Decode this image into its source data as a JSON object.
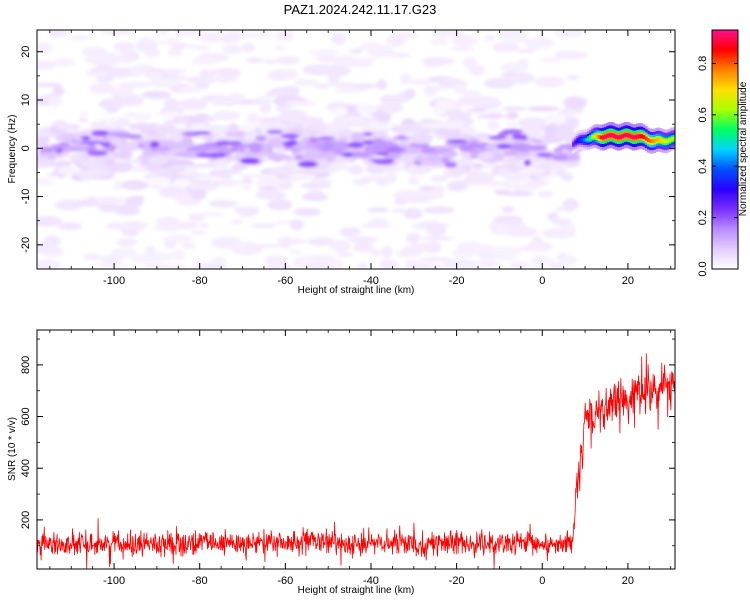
{
  "title": "PAZ1.2024.242.11.17.G23",
  "chart_data": [
    {
      "type": "heatmap",
      "xlabel": "Height of straight line (km)",
      "ylabel": "Frequency (Hz)",
      "xlim": [
        -118,
        31
      ],
      "ylim": [
        -25,
        24.5
      ],
      "xticks": [
        -100,
        -80,
        -60,
        -40,
        -20,
        0,
        20
      ],
      "yticks": [
        -20,
        -10,
        0,
        10,
        20
      ],
      "colorbar": {
        "label": "Normalized spectral amplitude",
        "range": [
          0,
          0.93
        ],
        "ticks": [
          0.0,
          0.2,
          0.4,
          0.6,
          0.8
        ],
        "tick_labels": [
          "0.0",
          "0.2",
          "0.4",
          "0.6",
          "0.8"
        ],
        "colormap": [
          "#ffffff",
          "#e4ccff",
          "#b98cff",
          "#7a2dff",
          "#2a00ff",
          "#0050ff",
          "#00d4ff",
          "#00ff60",
          "#aaff00",
          "#ffe000",
          "#ff8000",
          "#ff0000",
          "#ff1090"
        ]
      },
      "features": {
        "noise_band_x": [
          -118,
          8
        ],
        "noise_band_center_freq": 0,
        "noise_band_core_amplitude": 0.15,
        "signal_line": [
          {
            "x": 7,
            "freq": 1.0,
            "amplitude": 0.25
          },
          {
            "x": 10,
            "freq": 2.0,
            "amplitude": 0.45
          },
          {
            "x": 14,
            "freq": 2.5,
            "amplitude": 0.9
          },
          {
            "x": 22,
            "freq": 2.5,
            "amplitude": 0.9
          },
          {
            "x": 26,
            "freq": 1.5,
            "amplitude": 0.75
          },
          {
            "x": 31,
            "freq": 1.8,
            "amplitude": 0.6
          }
        ]
      }
    },
    {
      "type": "line",
      "xlabel": "Height of straight line (km)",
      "ylabel": "SNR (10 * v/v)",
      "xlim": [
        -118,
        31
      ],
      "ylim": [
        10,
        935
      ],
      "xticks": [
        -100,
        -80,
        -60,
        -40,
        -20,
        0,
        20
      ],
      "yticks": [
        200,
        400,
        600,
        800
      ],
      "series": [
        {
          "color": "#ff0000",
          "x": [
            -118,
            -100,
            -80,
            -60,
            -40,
            -20,
            0,
            7,
            8,
            9,
            10,
            12,
            15,
            20,
            25,
            31
          ],
          "values": [
            105,
            110,
            108,
            112,
            110,
            108,
            105,
            110,
            300,
            420,
            580,
            600,
            640,
            660,
            700,
            720
          ],
          "noise_amplitude": [
            90,
            90,
            90,
            95,
            95,
            90,
            90,
            90,
            120,
            140,
            170,
            170,
            170,
            180,
            180,
            180
          ]
        }
      ]
    }
  ]
}
